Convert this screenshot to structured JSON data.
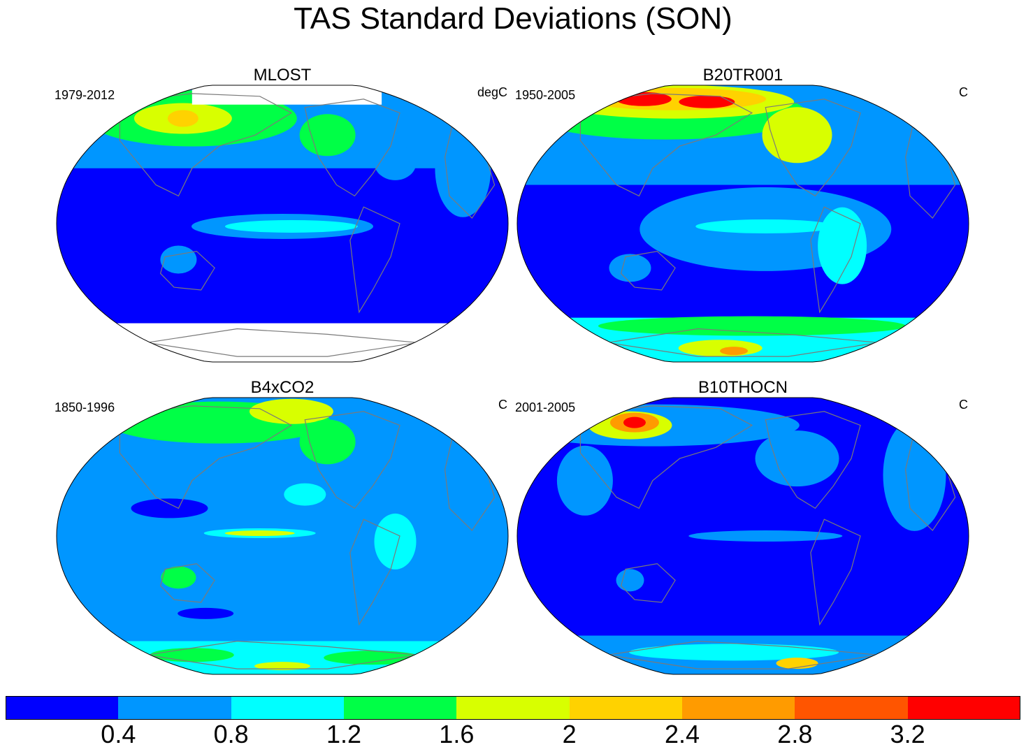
{
  "title": "TAS Standard Deviations (SON)",
  "panels": [
    {
      "name": "MLOST",
      "period": "1979-2012",
      "units": "degC",
      "variant": "mlost"
    },
    {
      "name": "B20TR001",
      "period": "1950-2005",
      "units": "C",
      "variant": "b20"
    },
    {
      "name": "B4xCO2",
      "period": "1850-1996",
      "units": "C",
      "variant": "b4x"
    },
    {
      "name": "B10THOCN",
      "period": "2001-2005",
      "units": "C",
      "variant": "b10"
    }
  ],
  "colorbar": {
    "colors": [
      "#0000ff",
      "#0096ff",
      "#00ffff",
      "#00ff46",
      "#d8ff00",
      "#ffd200",
      "#ff9b00",
      "#ff5500",
      "#ff0000"
    ],
    "labels": [
      "0.4",
      "0.8",
      "1.2",
      "1.6",
      "2",
      "2.4",
      "2.8",
      "3.2"
    ]
  },
  "colors": {
    "land_outline": "#7a7a7a",
    "missing": "#ffffff"
  }
}
